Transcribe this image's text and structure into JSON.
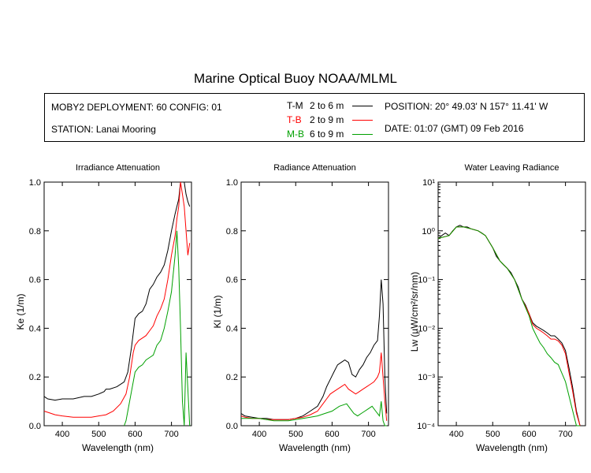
{
  "title": "Marine Optical Buoy NOAA/MLML",
  "info": {
    "deployment": "MOBY2 DEPLOYMENT: 60 CONFIG: 01",
    "station": "STATION: Lanai Mooring",
    "position": "POSITION: 20° 49.03' N   157° 11.41' W",
    "date": "DATE: 01:07 (GMT) 09 Feb 2016",
    "legend": [
      {
        "code": "T-M",
        "range": "2 to 6  m",
        "color": "#000000"
      },
      {
        "code": "T-B",
        "range": "2 to 9  m",
        "color": "#ff0000"
      },
      {
        "code": "M-B",
        "range": "6 to 9  m",
        "color": "#00a000"
      }
    ]
  },
  "chart_data": [
    {
      "type": "line",
      "title": "Irradiance Attenuation",
      "xlabel": "Wavelength (nm)",
      "ylabel": "Ke  (1/m)",
      "xlim": [
        350,
        755
      ],
      "ylim": [
        0,
        1.0
      ],
      "xticks": [
        400,
        500,
        600,
        700
      ],
      "yticks": [
        0.0,
        0.2,
        0.4,
        0.6,
        0.8,
        1.0
      ],
      "yscale": "linear",
      "series": [
        {
          "name": "T-M",
          "color": "#000000",
          "x": [
            350,
            360,
            380,
            400,
            430,
            460,
            480,
            500,
            515,
            520,
            530,
            550,
            570,
            580,
            590,
            600,
            610,
            620,
            630,
            640,
            650,
            660,
            670,
            680,
            690,
            700,
            710,
            720,
            725,
            730,
            735,
            740,
            745,
            750
          ],
          "y": [
            0.12,
            0.11,
            0.105,
            0.11,
            0.11,
            0.12,
            0.12,
            0.13,
            0.14,
            0.15,
            0.15,
            0.16,
            0.18,
            0.22,
            0.32,
            0.44,
            0.46,
            0.47,
            0.5,
            0.56,
            0.58,
            0.61,
            0.63,
            0.66,
            0.72,
            0.8,
            0.87,
            0.93,
            1.0,
            1.0,
            1.0,
            0.95,
            0.92,
            0.9
          ]
        },
        {
          "name": "T-B",
          "color": "#ff0000",
          "x": [
            350,
            360,
            380,
            400,
            430,
            460,
            480,
            500,
            520,
            540,
            560,
            575,
            585,
            595,
            600,
            610,
            620,
            630,
            640,
            650,
            660,
            670,
            680,
            690,
            700,
            710,
            715,
            720,
            725,
            730,
            735,
            740,
            745,
            750
          ],
          "y": [
            0.06,
            0.055,
            0.045,
            0.04,
            0.035,
            0.035,
            0.035,
            0.04,
            0.045,
            0.06,
            0.09,
            0.13,
            0.2,
            0.3,
            0.33,
            0.35,
            0.36,
            0.37,
            0.39,
            0.41,
            0.45,
            0.48,
            0.52,
            0.6,
            0.7,
            0.78,
            0.85,
            0.9,
            1.0,
            0.95,
            0.9,
            0.8,
            0.7,
            0.75
          ]
        },
        {
          "name": "M-B",
          "color": "#00a000",
          "x": [
            570,
            575,
            580,
            590,
            600,
            610,
            620,
            630,
            640,
            650,
            660,
            670,
            680,
            690,
            700,
            710,
            715,
            720,
            725,
            730,
            735,
            740,
            745,
            750
          ],
          "y": [
            0.0,
            0.02,
            0.06,
            0.14,
            0.22,
            0.24,
            0.25,
            0.27,
            0.28,
            0.29,
            0.33,
            0.35,
            0.4,
            0.47,
            0.55,
            0.7,
            0.8,
            0.65,
            0.4,
            0.1,
            0.0,
            0.3,
            0.15,
            0.0
          ]
        }
      ]
    },
    {
      "type": "line",
      "title": "Radiance Attenuation",
      "xlabel": "Wavelength (nm)",
      "ylabel": "Kl  (1/m)",
      "xlim": [
        350,
        755
      ],
      "ylim": [
        0,
        1.0
      ],
      "xticks": [
        400,
        500,
        600,
        700
      ],
      "yticks": [
        0.0,
        0.2,
        0.4,
        0.6,
        0.8,
        1.0
      ],
      "yscale": "linear",
      "series": [
        {
          "name": "T-M",
          "color": "#000000",
          "x": [
            350,
            360,
            380,
            400,
            420,
            440,
            460,
            480,
            500,
            520,
            540,
            560,
            575,
            585,
            595,
            605,
            615,
            625,
            635,
            645,
            655,
            665,
            675,
            685,
            695,
            705,
            715,
            725,
            730,
            735,
            740,
            745,
            750
          ],
          "y": [
            0.05,
            0.04,
            0.035,
            0.03,
            0.03,
            0.025,
            0.025,
            0.025,
            0.03,
            0.04,
            0.06,
            0.08,
            0.12,
            0.16,
            0.19,
            0.22,
            0.25,
            0.26,
            0.27,
            0.26,
            0.21,
            0.2,
            0.23,
            0.25,
            0.28,
            0.3,
            0.33,
            0.35,
            0.45,
            0.6,
            0.5,
            0.2,
            0.05
          ]
        },
        {
          "name": "T-B",
          "color": "#ff0000",
          "x": [
            350,
            360,
            380,
            400,
            420,
            440,
            460,
            480,
            500,
            520,
            540,
            560,
            575,
            585,
            595,
            605,
            615,
            625,
            635,
            645,
            655,
            665,
            675,
            685,
            695,
            705,
            715,
            725,
            730,
            735,
            740,
            745,
            750
          ],
          "y": [
            0.04,
            0.035,
            0.03,
            0.03,
            0.025,
            0.025,
            0.025,
            0.025,
            0.03,
            0.035,
            0.045,
            0.06,
            0.09,
            0.11,
            0.13,
            0.14,
            0.15,
            0.16,
            0.17,
            0.15,
            0.14,
            0.13,
            0.14,
            0.15,
            0.16,
            0.17,
            0.18,
            0.2,
            0.22,
            0.3,
            0.2,
            0.1,
            0.02
          ]
        },
        {
          "name": "M-B",
          "color": "#00a000",
          "x": [
            350,
            380,
            400,
            420,
            440,
            460,
            480,
            500,
            520,
            540,
            560,
            580,
            600,
            620,
            640,
            650,
            660,
            670,
            680,
            690,
            700,
            710,
            720,
            730,
            735,
            740,
            745,
            750
          ],
          "y": [
            0.03,
            0.03,
            0.03,
            0.025,
            0.02,
            0.02,
            0.02,
            0.025,
            0.03,
            0.035,
            0.04,
            0.05,
            0.06,
            0.08,
            0.09,
            0.07,
            0.05,
            0.04,
            0.05,
            0.06,
            0.07,
            0.08,
            0.06,
            0.04,
            0.1,
            0.02,
            0.0,
            0.0
          ]
        }
      ]
    },
    {
      "type": "line",
      "title": "Water Leaving Radiance",
      "xlabel": "Wavelength (nm)",
      "ylabel": "Lw  (µW/cm²/sr/nm)",
      "xlim": [
        350,
        755
      ],
      "ylim": [
        0.0001,
        10
      ],
      "yscale": "log",
      "xticks": [
        400,
        500,
        600,
        700
      ],
      "ytick_labels": [
        "10⁻⁴",
        "10⁻³",
        "10⁻²",
        "10⁻¹",
        "10⁰",
        "10¹"
      ],
      "series": [
        {
          "name": "T-M",
          "color": "#000000",
          "x": [
            350,
            360,
            370,
            380,
            390,
            400,
            410,
            420,
            430,
            440,
            450,
            460,
            470,
            480,
            490,
            500,
            510,
            520,
            530,
            540,
            550,
            560,
            570,
            580,
            590,
            600,
            610,
            620,
            630,
            640,
            650,
            660,
            670,
            680,
            690,
            700,
            710,
            720,
            730,
            740,
            745
          ],
          "y": [
            0.7,
            0.8,
            0.9,
            0.8,
            1.0,
            1.2,
            1.3,
            1.2,
            1.2,
            1.1,
            1.05,
            1.0,
            0.9,
            0.8,
            0.6,
            0.45,
            0.3,
            0.24,
            0.2,
            0.17,
            0.14,
            0.1,
            0.07,
            0.04,
            0.03,
            0.02,
            0.013,
            0.011,
            0.01,
            0.009,
            0.008,
            0.007,
            0.007,
            0.006,
            0.005,
            0.0035,
            0.0015,
            0.0006,
            0.0002,
            0.0001,
            0.0001
          ]
        },
        {
          "name": "T-B",
          "color": "#ff0000",
          "x": [
            350,
            380,
            400,
            420,
            440,
            460,
            480,
            500,
            520,
            540,
            560,
            580,
            600,
            610,
            620,
            630,
            640,
            650,
            660,
            670,
            680,
            690,
            700,
            710,
            720,
            730,
            740
          ],
          "y": [
            0.7,
            0.8,
            1.2,
            1.2,
            1.1,
            1.0,
            0.8,
            0.45,
            0.24,
            0.17,
            0.1,
            0.04,
            0.02,
            0.012,
            0.01,
            0.009,
            0.008,
            0.007,
            0.006,
            0.006,
            0.0055,
            0.0045,
            0.003,
            0.0012,
            0.0005,
            0.00018,
            0.0001
          ]
        },
        {
          "name": "M-B",
          "color": "#00a000",
          "x": [
            350,
            380,
            400,
            420,
            440,
            460,
            480,
            500,
            520,
            540,
            560,
            580,
            600,
            610,
            620,
            630,
            640,
            650,
            660,
            670,
            680,
            690,
            700,
            710,
            720,
            730,
            740
          ],
          "y": [
            0.7,
            0.8,
            1.2,
            1.2,
            1.1,
            1.0,
            0.8,
            0.45,
            0.24,
            0.17,
            0.1,
            0.04,
            0.018,
            0.01,
            0.007,
            0.005,
            0.004,
            0.003,
            0.0025,
            0.002,
            0.0018,
            0.0012,
            0.0008,
            0.0004,
            0.0002,
            0.0001,
            0.0001
          ]
        }
      ]
    }
  ]
}
